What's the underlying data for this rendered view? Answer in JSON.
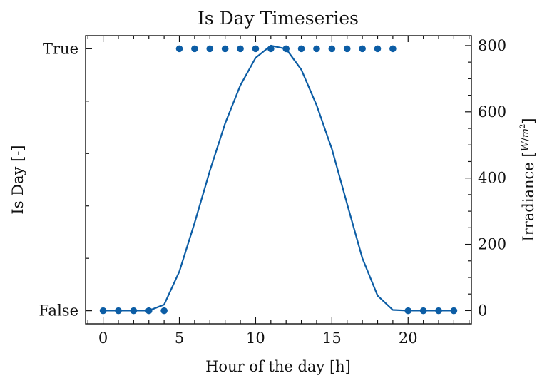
{
  "chart_data": {
    "type": "line",
    "title": "Is Day Timeseries",
    "xlabel": "Hour of the day [h]",
    "ylabel_left": "Is Day [-]",
    "ylabel_right": "Irradiance [W/m²]",
    "ylabel_right_prefix": "Irradiance [",
    "ylabel_right_unit_num": "W",
    "ylabel_right_unit_den": "m",
    "ylabel_right_unit_den_exp": "2",
    "ylabel_right_suffix": "]",
    "xlim": [
      -1.15,
      24.15
    ],
    "ylim_left": [
      -0.05,
      1.05
    ],
    "ylim_right": [
      -40,
      830
    ],
    "x_ticks": [
      0,
      5,
      10,
      15,
      20
    ],
    "x_tick_labels": [
      "0",
      "5",
      "10",
      "15",
      "20"
    ],
    "y_left_ticks": [
      0,
      1
    ],
    "y_left_tick_labels": [
      "False",
      "True"
    ],
    "y_right_ticks": [
      0,
      200,
      400,
      600,
      800
    ],
    "y_right_tick_labels": [
      "0",
      "200",
      "400",
      "600",
      "800"
    ],
    "color": "#0C5DA5",
    "grid": false,
    "series": [
      {
        "axis": "right",
        "style": "line",
        "x": [
          0,
          1,
          2,
          3,
          4,
          5,
          6,
          7,
          8,
          9,
          10,
          11,
          12,
          13,
          14,
          15,
          16,
          17,
          18,
          19,
          20,
          21,
          22,
          23
        ],
        "y": [
          0,
          0,
          0,
          0,
          18,
          118,
          265,
          422,
          565,
          680,
          763,
          800,
          790,
          727,
          620,
          488,
          322,
          158,
          45,
          2,
          0,
          0,
          0,
          0
        ]
      },
      {
        "axis": "left",
        "style": "markers",
        "x": [
          0,
          1,
          2,
          3,
          4,
          5,
          6,
          7,
          8,
          9,
          10,
          11,
          12,
          13,
          14,
          15,
          16,
          17,
          18,
          19,
          20,
          21,
          22,
          23
        ],
        "y": [
          0,
          0,
          0,
          0,
          0,
          1,
          1,
          1,
          1,
          1,
          1,
          1,
          1,
          1,
          1,
          1,
          1,
          1,
          1,
          1,
          0,
          0,
          0,
          0
        ]
      }
    ]
  }
}
